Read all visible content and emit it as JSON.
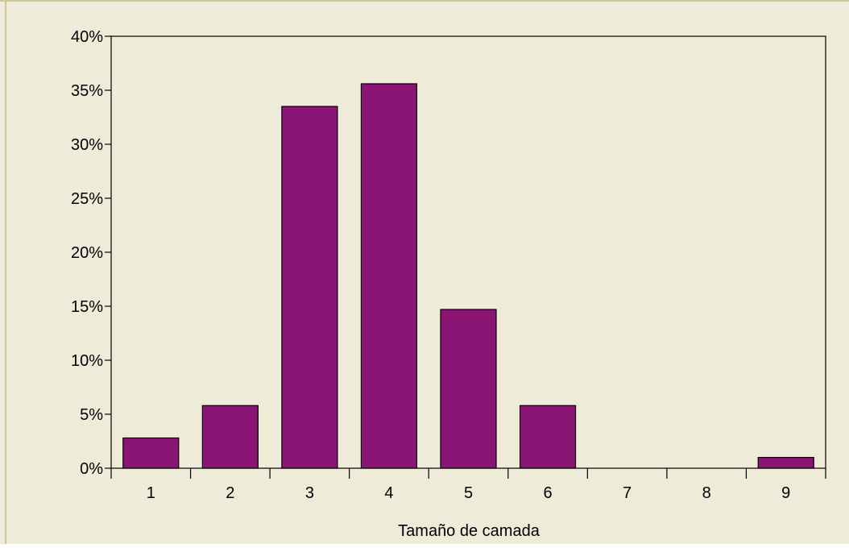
{
  "chart_data": {
    "type": "bar",
    "title": "",
    "xlabel": "Tamaño de camada",
    "ylabel": "",
    "categories": [
      "1",
      "2",
      "3",
      "4",
      "5",
      "6",
      "7",
      "8",
      "9"
    ],
    "values": [
      2.8,
      5.8,
      33.5,
      35.6,
      14.7,
      5.8,
      0,
      0,
      1.0
    ],
    "ylim": [
      0,
      40
    ],
    "yticks": [
      0,
      5,
      10,
      15,
      20,
      25,
      30,
      35,
      40
    ],
    "ytick_labels": [
      "0%",
      "5%",
      "10%",
      "15%",
      "20%",
      "25%",
      "30%",
      "35%",
      "40%"
    ],
    "grid": false,
    "colors": {
      "bar": "#8b1574",
      "bar_stroke": "#000000",
      "background": "#efebd9",
      "frame": "#cfc49a",
      "axis": "#000000"
    }
  }
}
